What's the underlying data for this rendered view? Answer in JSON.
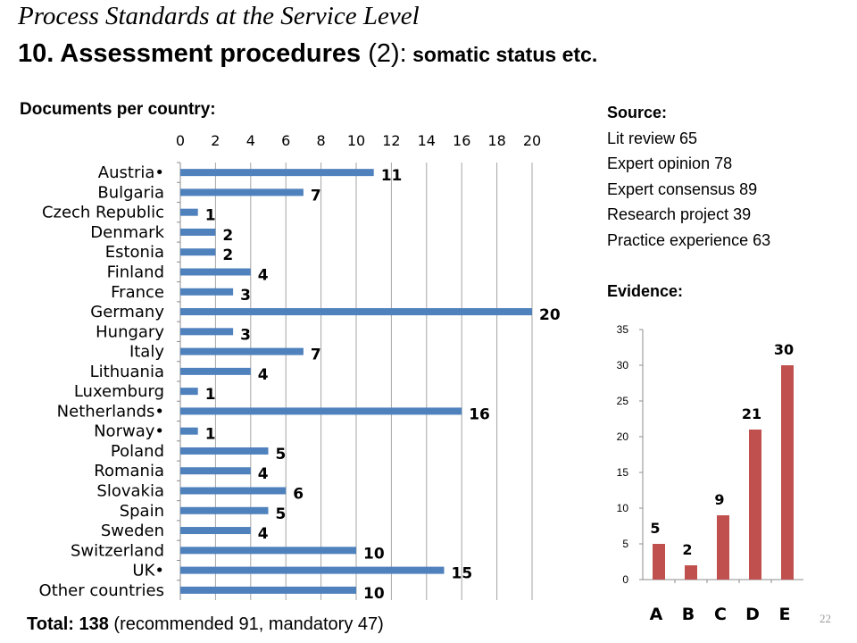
{
  "header": {
    "title_line1": "Process Standards at the Service Level",
    "title_main": "10. Assessment procedures ",
    "title_paren": "(2):",
    "title_rest": " somatic status etc."
  },
  "documents_label": "Documents per country:",
  "source": {
    "heading": "Source:",
    "items": [
      "Lit review 65",
      "Expert opinion 78",
      "Expert consensus 89",
      "Research project 39",
      "Practice experience 63"
    ]
  },
  "evidence_label": "Evidence:",
  "total": {
    "bold": "Total: 138",
    "rest": " (recommended 91, mandatory 47)"
  },
  "page_number": "22",
  "chart_data": [
    {
      "type": "bar",
      "orientation": "horizontal",
      "categories": [
        "Austria•",
        "Bulgaria",
        "Czech Republic",
        "Denmark",
        "Estonia",
        "Finland",
        "France",
        "Germany",
        "Hungary",
        "Italy",
        "Lithuania",
        "Luxemburg",
        "Netherlands•",
        "Norway•",
        "Poland",
        "Romania",
        "Slovakia",
        "Spain",
        "Sweden",
        "Switzerland",
        "UK•",
        "Other countries"
      ],
      "values": [
        11,
        7,
        1,
        2,
        2,
        4,
        3,
        20,
        3,
        7,
        4,
        1,
        16,
        1,
        5,
        4,
        6,
        5,
        4,
        10,
        15,
        10
      ],
      "xlim": [
        0,
        20
      ],
      "xticks": [
        0,
        2,
        4,
        6,
        8,
        10,
        12,
        14,
        16,
        18,
        20
      ],
      "axis_position": "top",
      "grid": true,
      "color": "#4f81bd"
    },
    {
      "type": "bar",
      "categories": [
        "A",
        "B",
        "C",
        "D",
        "E"
      ],
      "values": [
        5,
        2,
        9,
        21,
        30
      ],
      "ylim": [
        0,
        35
      ],
      "yticks": [
        0,
        5,
        10,
        15,
        20,
        25,
        30,
        35
      ],
      "grid": false,
      "color": "#c0504d"
    }
  ]
}
